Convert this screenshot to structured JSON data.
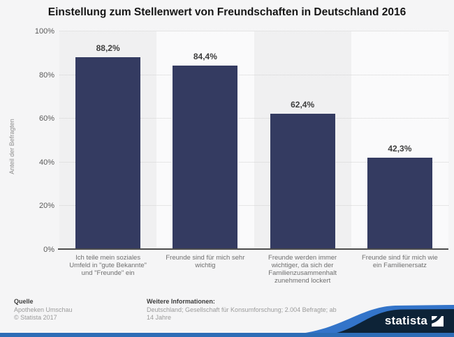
{
  "title": "Einstellung zum Stellenwert von Freundschaften in Deutschland 2016",
  "chart_data": {
    "type": "bar",
    "title": "Einstellung zum Stellenwert von Freundschaften in Deutschland 2016",
    "categories": [
      "Ich teile mein soziales Umfeld in \"gute Bekannte\" und \"Freunde\" ein",
      "Freunde sind für mich sehr wichtig",
      "Freunde werden immer wichtiger, da sich der Familienzusammenhalt zunehmend lockert",
      "Freunde sind für mich wie ein Familienersatz"
    ],
    "values": [
      88.2,
      84.4,
      62.4,
      42.3
    ],
    "value_labels": [
      "88,2%",
      "84,4%",
      "62,4%",
      "42,3%"
    ],
    "xlabel": "",
    "ylabel": "Anteil der Befragten",
    "ylim": [
      0,
      100
    ],
    "ytick_step": 20,
    "yticks": [
      "0%",
      "20%",
      "40%",
      "60%",
      "80%",
      "100%"
    ],
    "grid": true,
    "legend": "none",
    "bar_color": "#343b61"
  },
  "footer": {
    "source_heading": "Quelle",
    "source_lines": [
      "Apotheken Umschau",
      "© Statista 2017"
    ],
    "info_heading": "Weitere Informationen:",
    "info_lines": [
      "Deutschland; Gesellschaft für Konsumforschung; 2.004 Befragte; ab",
      "14 Jahre"
    ]
  },
  "branding": {
    "logo_text": "statista",
    "navy": "#0d2337",
    "accent_blue": "#3374c9",
    "bottom_bar_color": "#2d6db6"
  }
}
